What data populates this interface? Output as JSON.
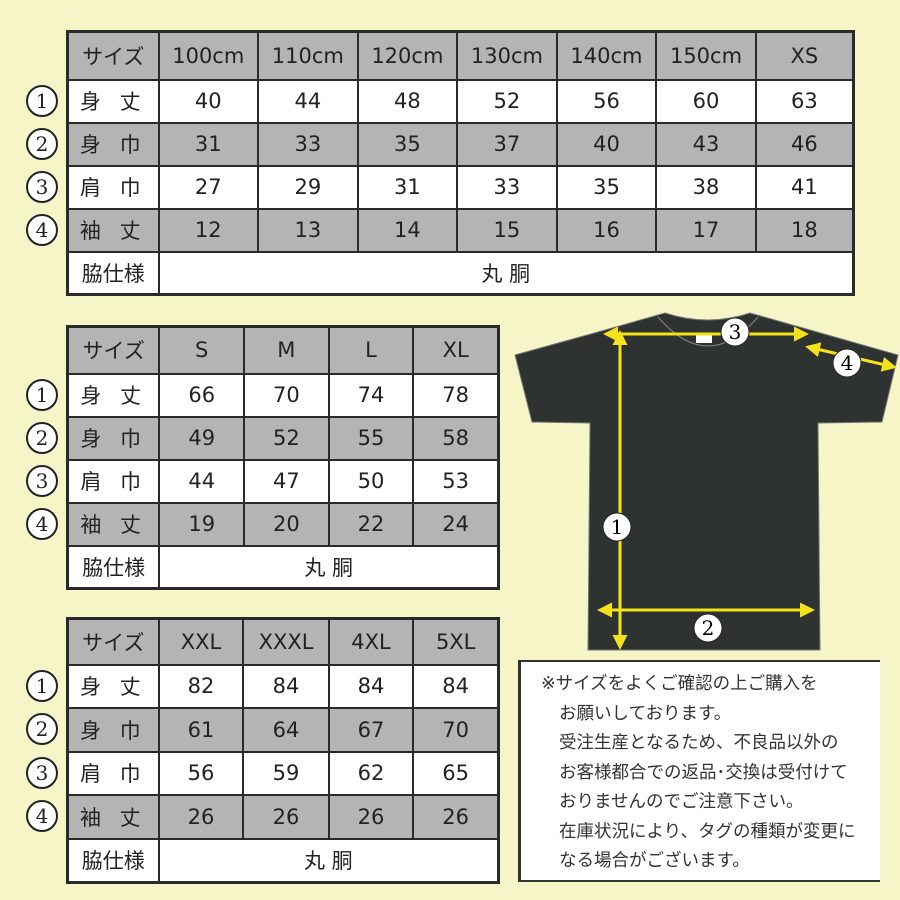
{
  "row_markers": [
    "①",
    "②",
    "③",
    "④"
  ],
  "row_labels": {
    "size": "サイズ",
    "length": "身 丈",
    "width": "身 巾",
    "shoulder": "肩 巾",
    "sleeve": "袖 丈",
    "side": "脇仕様"
  },
  "tables": [
    {
      "sizes": [
        "100cm",
        "110cm",
        "120cm",
        "130cm",
        "140cm",
        "150cm",
        "XS"
      ],
      "length": [
        "40",
        "44",
        "48",
        "52",
        "56",
        "60",
        "63"
      ],
      "width": [
        "31",
        "33",
        "35",
        "37",
        "40",
        "43",
        "46"
      ],
      "shoulder": [
        "27",
        "29",
        "31",
        "33",
        "35",
        "38",
        "41"
      ],
      "sleeve": [
        "12",
        "13",
        "14",
        "15",
        "16",
        "17",
        "18"
      ],
      "side": "丸 胴"
    },
    {
      "sizes": [
        "S",
        "M",
        "L",
        "XL"
      ],
      "length": [
        "66",
        "70",
        "74",
        "78"
      ],
      "width": [
        "49",
        "52",
        "55",
        "58"
      ],
      "shoulder": [
        "44",
        "47",
        "50",
        "53"
      ],
      "sleeve": [
        "19",
        "20",
        "22",
        "24"
      ],
      "side": "丸 胴"
    },
    {
      "sizes": [
        "XXL",
        "XXXL",
        "4XL",
        "5XL"
      ],
      "length": [
        "82",
        "84",
        "84",
        "84"
      ],
      "width": [
        "61",
        "64",
        "67",
        "70"
      ],
      "shoulder": [
        "56",
        "59",
        "62",
        "65"
      ],
      "sleeve": [
        "26",
        "26",
        "26",
        "26"
      ],
      "side": "丸 胴"
    }
  ],
  "diagram": {
    "markers": [
      "1",
      "2",
      "3",
      "4"
    ],
    "shirt_color": "#2e3230",
    "arrow_color": "#f5e21a"
  },
  "note": {
    "lines": [
      "※サイズをよくご確認の上ご購入を",
      "お願いしております。",
      "受注生産となるため、不良品以外の",
      "お客様都合での返品･交換は受付けて",
      "おりませんのでご注意下さい。",
      "在庫状況により、タグの種類が変更に",
      "なる場合がございます。"
    ]
  },
  "colors": {
    "background": "#f5f5c8",
    "header_gray": "#b4b4b4",
    "border": "#2a2a2a"
  }
}
